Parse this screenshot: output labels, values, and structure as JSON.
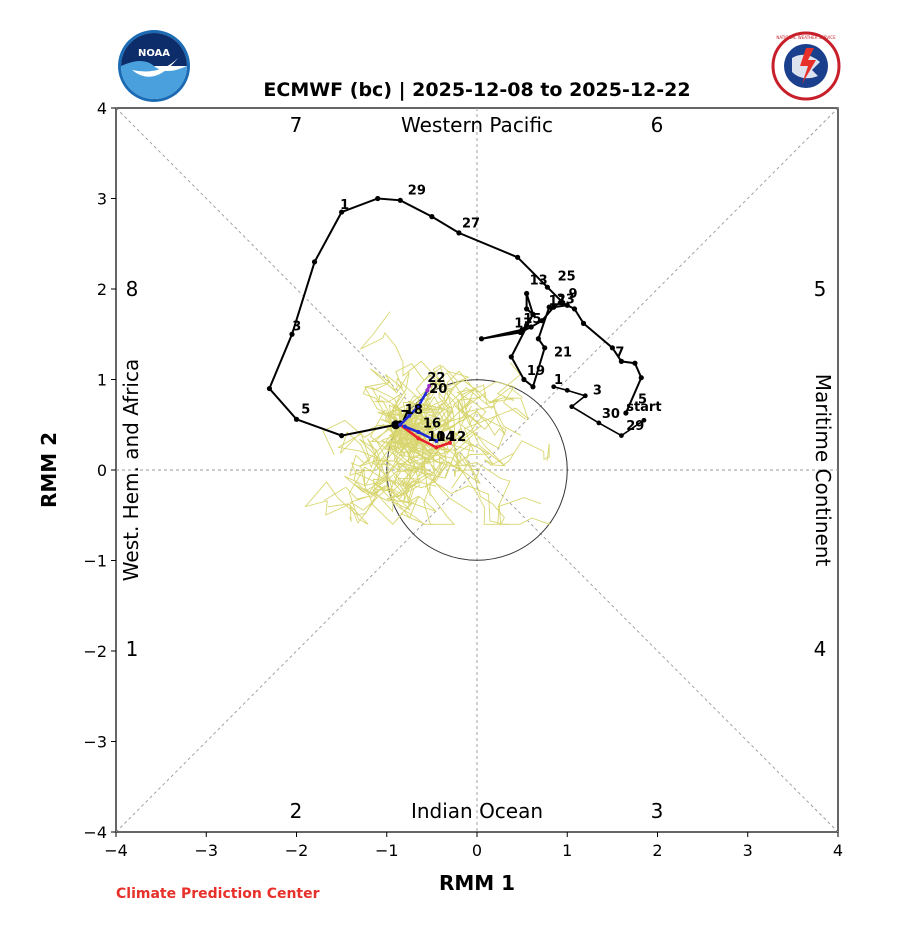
{
  "chart_data": {
    "type": "line",
    "title": "ECMWF (bc) | 2025-12-08 to 2025-12-22",
    "xlabel": "RMM 1",
    "ylabel": "RMM 2",
    "xlim": [
      -4,
      4
    ],
    "ylim": [
      -4,
      4
    ],
    "xticks": [
      "−4",
      "−3",
      "−2",
      "−1",
      "0",
      "1",
      "2",
      "3",
      "4"
    ],
    "yticks": [
      "−4",
      "−3",
      "−2",
      "−1",
      "0",
      "1",
      "2",
      "3",
      "4"
    ],
    "unit_circle_radius": 1,
    "phase_labels": [
      "1",
      "2",
      "3",
      "4",
      "5",
      "6",
      "7",
      "8"
    ],
    "region_labels": {
      "top": "Western Pacific",
      "bottom": "Indian Ocean",
      "left": "West. Hem. and Africa",
      "right": "Maritime Continent"
    },
    "observed": {
      "name": "observed",
      "color": "#000000",
      "points": [
        [
          1.65,
          0.63
        ],
        [
          1.82,
          1.02
        ],
        [
          1.75,
          1.18
        ],
        [
          1.6,
          1.2
        ],
        [
          1.5,
          1.35
        ],
        [
          1.18,
          1.62
        ],
        [
          1.08,
          1.78
        ],
        [
          1.0,
          1.82
        ],
        [
          0.85,
          1.8
        ],
        [
          0.72,
          1.65
        ],
        [
          0.6,
          1.58
        ],
        [
          0.48,
          1.52
        ],
        [
          0.05,
          1.45
        ],
        [
          0.5,
          1.55
        ],
        [
          0.55,
          1.6
        ],
        [
          0.62,
          1.72
        ],
        [
          0.55,
          1.95
        ],
        [
          0.55,
          1.78
        ],
        [
          0.62,
          1.72
        ],
        [
          0.38,
          1.25
        ],
        [
          0.52,
          1.0
        ],
        [
          0.62,
          0.92
        ],
        [
          0.75,
          1.35
        ],
        [
          0.68,
          1.45
        ],
        [
          0.8,
          1.8
        ],
        [
          0.95,
          1.85
        ],
        [
          0.78,
          2.02
        ],
        [
          0.45,
          2.35
        ],
        [
          -0.2,
          2.62
        ],
        [
          -0.5,
          2.8
        ],
        [
          -0.85,
          2.98
        ],
        [
          -1.1,
          3.0
        ],
        [
          -1.5,
          2.85
        ],
        [
          -1.8,
          2.3
        ],
        [
          -2.05,
          1.5
        ],
        [
          -2.3,
          0.9
        ],
        [
          -2.0,
          0.56
        ],
        [
          -1.5,
          0.38
        ],
        [
          -0.9,
          0.5
        ],
        [
          -0.85,
          0.52
        ]
      ],
      "labels": [
        {
          "text": "start",
          "x": 1.62,
          "y": 0.63
        },
        {
          "text": "5",
          "x": 1.75,
          "y": 0.71
        },
        {
          "text": "7",
          "x": 1.5,
          "y": 1.23
        },
        {
          "text": "9",
          "x": 0.98,
          "y": 1.88
        },
        {
          "text": "11",
          "x": 0.76,
          "y": 1.8
        },
        {
          "text": "13",
          "x": 0.55,
          "y": 2.03
        },
        {
          "text": "15",
          "x": 0.48,
          "y": 1.6
        },
        {
          "text": "17",
          "x": 0.38,
          "y": 1.55
        },
        {
          "text": "19",
          "x": 0.52,
          "y": 1.03
        },
        {
          "text": "21",
          "x": 0.82,
          "y": 1.23
        },
        {
          "text": "23",
          "x": 0.85,
          "y": 1.82
        },
        {
          "text": "25",
          "x": 0.86,
          "y": 2.07
        },
        {
          "text": "27",
          "x": -0.2,
          "y": 2.66
        },
        {
          "text": "29",
          "x": -0.8,
          "y": 3.02
        },
        {
          "text": "1",
          "x": -1.55,
          "y": 2.86
        },
        {
          "text": "3",
          "x": -2.08,
          "y": 1.52
        },
        {
          "text": "5",
          "x": -1.98,
          "y": 0.6
        },
        {
          "text": "7",
          "x": -0.88,
          "y": 0.53
        },
        {
          "text": "1",
          "x": 0.82,
          "y": 0.93
        },
        {
          "text": "3",
          "x": 1.25,
          "y": 0.81
        },
        {
          "text": "30",
          "x": 1.35,
          "y": 0.55
        },
        {
          "text": "29",
          "x": 1.62,
          "y": 0.42
        }
      ]
    },
    "second_path": {
      "color": "#000000",
      "points": [
        [
          0.85,
          0.92
        ],
        [
          1.0,
          0.88
        ],
        [
          1.2,
          0.82
        ],
        [
          1.05,
          0.7
        ],
        [
          1.35,
          0.52
        ],
        [
          1.6,
          0.38
        ],
        [
          1.85,
          0.55
        ]
      ]
    },
    "forecast_mean": {
      "name": "ensemble mean",
      "segments": [
        {
          "color": "#e8202a",
          "points": [
            [
              -0.85,
              0.5
            ],
            [
              -0.65,
              0.35
            ],
            [
              -0.45,
              0.25
            ],
            [
              -0.3,
              0.3
            ]
          ]
        },
        {
          "color": "#1f2bd8",
          "points": [
            [
              -0.85,
              0.5
            ],
            [
              -0.75,
              0.6
            ],
            [
              -0.65,
              0.7
            ],
            [
              -0.55,
              0.88
            ]
          ]
        },
        {
          "color": "#1f2bd8",
          "points": [
            [
              -0.8,
              0.48
            ],
            [
              -0.65,
              0.42
            ],
            [
              -0.45,
              0.32
            ]
          ]
        },
        {
          "color": "#9a30c8",
          "points": [
            [
              -0.55,
              0.88
            ],
            [
              -0.53,
              0.93
            ]
          ]
        }
      ],
      "labels": [
        {
          "text": "18",
          "x": -0.8,
          "y": 0.62
        },
        {
          "text": "16",
          "x": -0.6,
          "y": 0.47
        },
        {
          "text": "22",
          "x": -0.55,
          "y": 0.97
        },
        {
          "text": "20",
          "x": -0.53,
          "y": 0.85
        },
        {
          "text": "10",
          "x": -0.55,
          "y": 0.32
        },
        {
          "text": "14",
          "x": -0.45,
          "y": 0.32
        },
        {
          "text": "12",
          "x": -0.32,
          "y": 0.32
        }
      ]
    },
    "ensemble_color": "#d8d670"
  },
  "logos": {
    "left_text": "NOAA",
    "right_text": "NATIONAL WEATHER SERVICE"
  },
  "footer": {
    "credit": "Climate Prediction Center",
    "credit_color": "#e8302a"
  }
}
